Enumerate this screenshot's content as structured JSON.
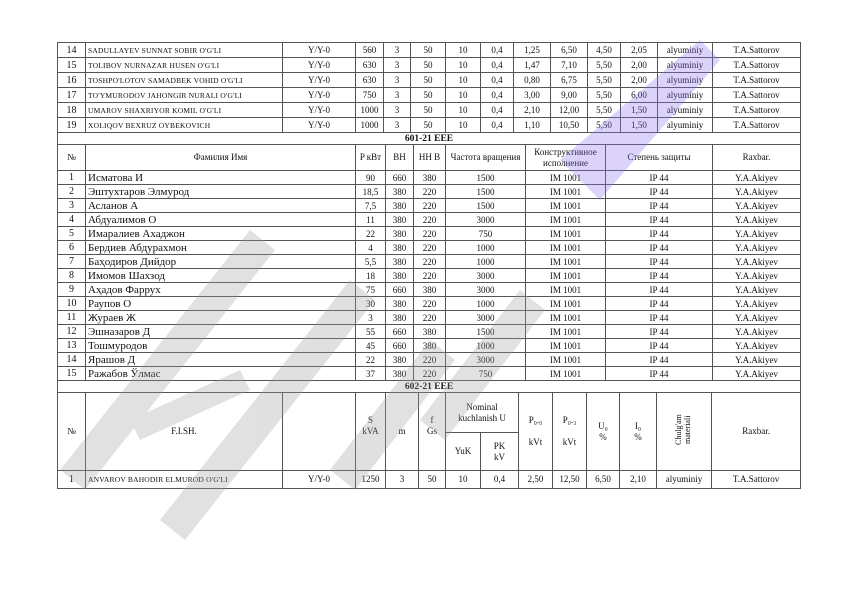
{
  "table1": {
    "rows": [
      {
        "no": "14",
        "name": "SADULLAYEV SUNNAT SOBIR O'G'LI",
        "scheme": "Y/Y-0",
        "s": "560",
        "m": "3",
        "f": "50",
        "yuk": "10",
        "pk": "0,4",
        "p0": "1,25",
        "pk_loss": "6,50",
        "u": "4,50",
        "i": "2,05",
        "material": "alyuminiy",
        "rahbar": "T.A.Sattorov"
      },
      {
        "no": "15",
        "name": "TOLIBOV NURNAZAR HUSEN O'G'LI",
        "scheme": "Y/Y-0",
        "s": "630",
        "m": "3",
        "f": "50",
        "yuk": "10",
        "pk": "0,4",
        "p0": "1,47",
        "pk_loss": "7,10",
        "u": "5,50",
        "i": "2,00",
        "material": "alyuminiy",
        "rahbar": "T.A.Sattorov"
      },
      {
        "no": "16",
        "name": "TOSHPO'LOTOV SAMADBEK VOHID O'G'LI",
        "scheme": "Y/Y-0",
        "s": "630",
        "m": "3",
        "f": "50",
        "yuk": "10",
        "pk": "0,4",
        "p0": "0,80",
        "pk_loss": "6,75",
        "u": "5,50",
        "i": "2,00",
        "material": "alyuminiy",
        "rahbar": "T.A.Sattorov"
      },
      {
        "no": "17",
        "name": "TO'YMURODOV JAHONGIR NURALI O'G'LI",
        "scheme": "Y/Y-0",
        "s": "750",
        "m": "3",
        "f": "50",
        "yuk": "10",
        "pk": "0,4",
        "p0": "3,00",
        "pk_loss": "9,00",
        "u": "5,50",
        "i": "6,00",
        "material": "alyuminiy",
        "rahbar": "T.A.Sattorov"
      },
      {
        "no": "18",
        "name": "UMAROV SHAXRIYOR KOMIL O'G'LI",
        "scheme": "Y/Y-0",
        "s": "1000",
        "m": "3",
        "f": "50",
        "yuk": "10",
        "pk": "0,4",
        "p0": "2,10",
        "pk_loss": "12,00",
        "u": "5,50",
        "i": "1,50",
        "material": "alyuminiy",
        "rahbar": "T.A.Sattorov"
      },
      {
        "no": "19",
        "name": "XOLIQOV BEXRUZ OYBEKOVICH",
        "scheme": "Y/Y-0",
        "s": "1000",
        "m": "3",
        "f": "50",
        "yuk": "10",
        "pk": "0,4",
        "p0": "1,10",
        "pk_loss": "10,50",
        "u": "5,50",
        "i": "1,50",
        "material": "alyuminiy",
        "rahbar": "T.A.Sattorov"
      }
    ]
  },
  "table2": {
    "section": "601-21 EEE",
    "headers": [
      "№",
      "Фамилия Имя",
      "P кВт",
      "ВН",
      "НН В",
      "Частота вращения",
      "Конструктивное исполнение",
      "Степень защиты",
      "Raxbar."
    ],
    "rows": [
      [
        "1",
        "Исматова И",
        "90",
        "660",
        "380",
        "1500",
        "IM 1001",
        "IP 44",
        "Y.A.Akiyev"
      ],
      [
        "2",
        "Эштухтаров Элмурод",
        "18,5",
        "380",
        "220",
        "1500",
        "IM 1001",
        "IP 44",
        "Y.A.Akiyev"
      ],
      [
        "3",
        "Асланов А",
        "7,5",
        "380",
        "220",
        "1500",
        "IM 1001",
        "IP 44",
        "Y.A.Akiyev"
      ],
      [
        "4",
        "Абдуалимов О",
        "11",
        "380",
        "220",
        "3000",
        "IM 1001",
        "IP 44",
        "Y.A.Akiyev"
      ],
      [
        "5",
        "Имаралиев Ахаджон",
        "22",
        "380",
        "220",
        "750",
        "IM 1001",
        "IP 44",
        "Y.A.Akiyev"
      ],
      [
        "6",
        "Бердиев Абдурахмон",
        "4",
        "380",
        "220",
        "1000",
        "IM 1001",
        "IP 44",
        "Y.A.Akiyev"
      ],
      [
        "7",
        "Баҳодиров Дийдор",
        "5,5",
        "380",
        "220",
        "1000",
        "IM 1001",
        "IP 44",
        "Y.A.Akiyev"
      ],
      [
        "8",
        "Имомов Шахзод",
        "18",
        "380",
        "220",
        "3000",
        "IM 1001",
        "IP 44",
        "Y.A.Akiyev"
      ],
      [
        "9",
        "Аҳадов Фаррух",
        "75",
        "660",
        "380",
        "3000",
        "IM 1001",
        "IP 44",
        "Y.A.Akiyev"
      ],
      [
        "10",
        "Раупов О",
        "30",
        "380",
        "220",
        "1000",
        "IM 1001",
        "IP 44",
        "Y.A.Akiyev"
      ],
      [
        "11",
        "Жураев Ж",
        "3",
        "380",
        "220",
        "3000",
        "IM 1001",
        "IP 44",
        "Y.A.Akiyev"
      ],
      [
        "12",
        "Эшназаров Д",
        "55",
        "660",
        "380",
        "1500",
        "IM 1001",
        "IP 44",
        "Y.A.Akiyev"
      ],
      [
        "13",
        "Тошмуродов",
        "45",
        "660",
        "380",
        "1000",
        "IM 1001",
        "IP 44",
        "Y.A.Akiyev"
      ],
      [
        "14",
        "Ярашов Д",
        "22",
        "380",
        "220",
        "3000",
        "IM 1001",
        "IP 44",
        "Y.A.Akiyev"
      ],
      [
        "15",
        "Ражабов Ўлмас",
        "37",
        "380",
        "220",
        "750",
        "IM 1001",
        "IP 44",
        "Y.A.Akiyev"
      ]
    ]
  },
  "table3": {
    "section": "602-21 EEE",
    "headers": {
      "no": "№",
      "name": "F.I.SH.",
      "s": "S",
      "s_unit": "kVA",
      "m": "m",
      "f": "f",
      "f_unit": "Gs",
      "nominal": "Nominal kuchlanish U",
      "yuk": "YuK",
      "pk": "PK",
      "pk_unit": "kV",
      "p0": "P₀.₀",
      "p0_unit": "kVt",
      "pk_loss": "P₀.₃",
      "pk_loss_unit": "kVt",
      "u": "U₀",
      "u_unit": "%",
      "i": "I₀",
      "i_unit": "%",
      "material": "Chulg'am materiali",
      "rahbar": "Raxbar."
    },
    "rows": [
      {
        "no": "1",
        "name": "ANVAROV BAHODIR ELMUROD O'G'LI",
        "scheme": "Y/Y-0",
        "s": "1250",
        "m": "3",
        "f": "50",
        "yuk": "10",
        "pk": "0,4",
        "p0": "2,50",
        "pk_loss": "12,50",
        "u": "6,50",
        "i": "2,10",
        "material": "alyuminiy",
        "rahbar": "T.A.Sattorov"
      }
    ]
  },
  "watermark": {
    "text": "Hujjat",
    "colors": {
      "gray": "#9a9a9a",
      "purple": "#8a6cf0"
    }
  }
}
